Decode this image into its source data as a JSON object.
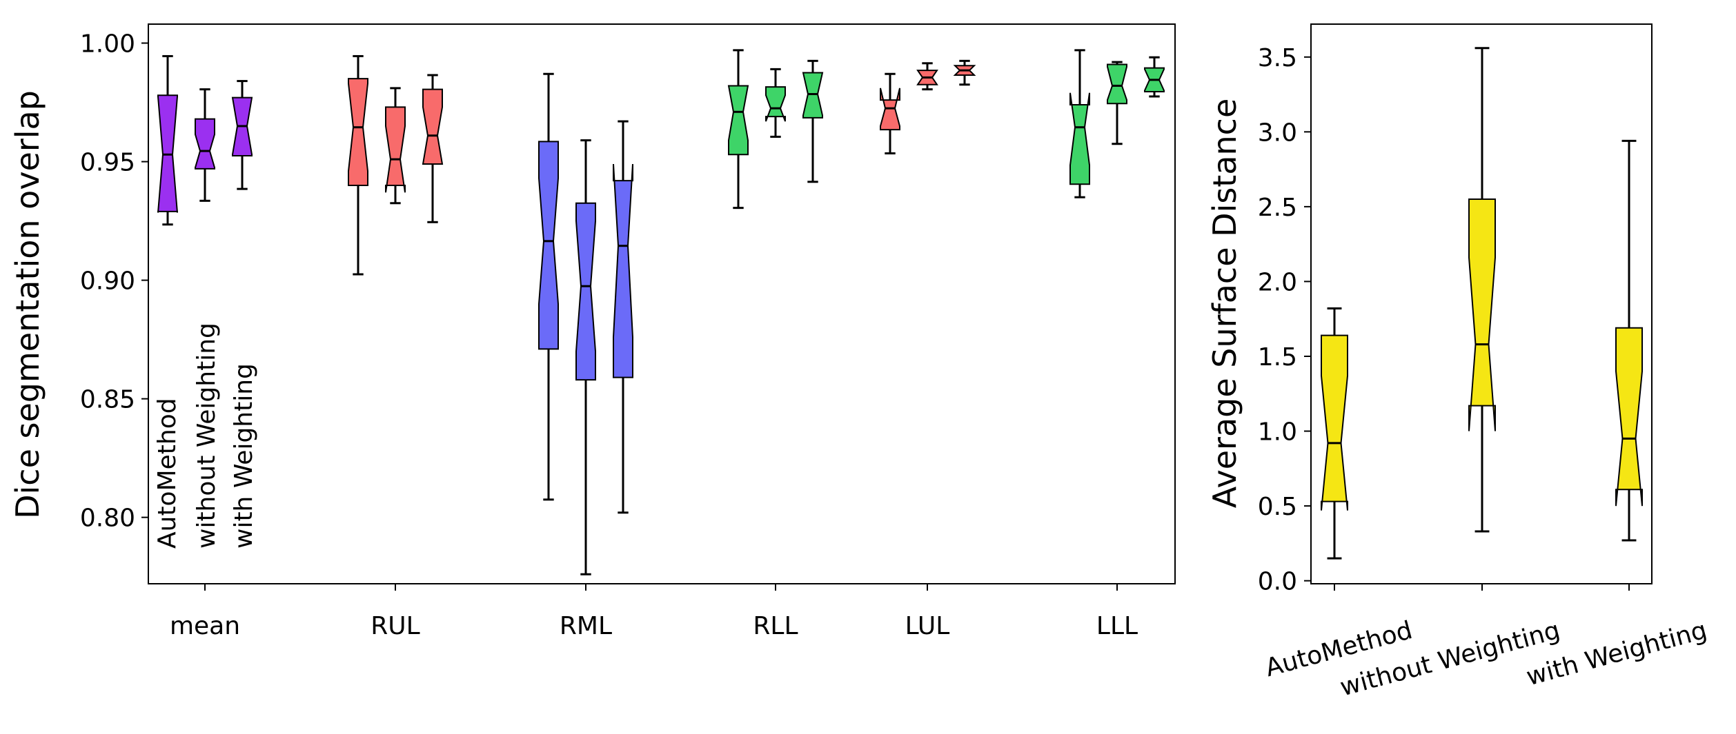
{
  "chart_data": [
    {
      "type": "boxplot",
      "ylabel": "Dice segmentation overlap",
      "ylim": [
        0.772,
        1.008
      ],
      "yticks": [
        0.8,
        0.85,
        0.9,
        0.95,
        1.0
      ],
      "ytick_labels": [
        "0.80",
        "0.85",
        "0.90",
        "0.95",
        "1.00"
      ],
      "categories": [
        "mean",
        "RUL",
        "RML",
        "RLL",
        "LUL",
        "LLL"
      ],
      "methods": [
        "AutoMethod",
        "without Weighting",
        "with Weighting"
      ],
      "notched": true,
      "colors": {
        "mean": "#9b30f0",
        "RUL": "#f86b6b",
        "RML": "#6b6bf8",
        "RLL": "#3ed468",
        "LUL": "#f86b6b",
        "LLL": "#3ed468"
      },
      "boxes": [
        {
          "category": "mean",
          "method": "AutoMethod",
          "whislo": 0.9235,
          "q1": 0.929,
          "med": 0.953,
          "q3": 0.978,
          "whishi": 0.9945,
          "notch_lo": 0.9285,
          "notch_hi": 0.9775
        },
        {
          "category": "mean",
          "method": "without Weighting",
          "whislo": 0.9335,
          "q1": 0.947,
          "med": 0.9545,
          "q3": 0.968,
          "whishi": 0.9805,
          "notch_lo": 0.9475,
          "notch_hi": 0.9615
        },
        {
          "category": "mean",
          "method": "with Weighting",
          "whislo": 0.9385,
          "q1": 0.9525,
          "med": 0.965,
          "q3": 0.977,
          "whishi": 0.984,
          "notch_lo": 0.953,
          "notch_hi": 0.977
        },
        {
          "category": "RUL",
          "method": "AutoMethod",
          "whislo": 0.9025,
          "q1": 0.94,
          "med": 0.9645,
          "q3": 0.985,
          "whishi": 0.9945,
          "notch_lo": 0.946,
          "notch_hi": 0.983
        },
        {
          "category": "RUL",
          "method": "without Weighting",
          "whislo": 0.9325,
          "q1": 0.94,
          "med": 0.951,
          "q3": 0.973,
          "whishi": 0.981,
          "notch_lo": 0.937,
          "notch_hi": 0.965
        },
        {
          "category": "RUL",
          "method": "with Weighting",
          "whislo": 0.9245,
          "q1": 0.949,
          "med": 0.961,
          "q3": 0.9805,
          "whishi": 0.9865,
          "notch_lo": 0.949,
          "notch_hi": 0.973
        },
        {
          "category": "RML",
          "method": "AutoMethod",
          "whislo": 0.8075,
          "q1": 0.871,
          "med": 0.9165,
          "q3": 0.9585,
          "whishi": 0.987,
          "notch_lo": 0.89,
          "notch_hi": 0.943
        },
        {
          "category": "RML",
          "method": "without Weighting",
          "whislo": 0.776,
          "q1": 0.858,
          "med": 0.8975,
          "q3": 0.9325,
          "whishi": 0.959,
          "notch_lo": 0.87,
          "notch_hi": 0.925
        },
        {
          "category": "RML",
          "method": "with Weighting",
          "whislo": 0.802,
          "q1": 0.859,
          "med": 0.9145,
          "q3": 0.942,
          "whishi": 0.967,
          "notch_lo": 0.876,
          "notch_hi": 0.949
        },
        {
          "category": "RLL",
          "method": "AutoMethod",
          "whislo": 0.9305,
          "q1": 0.953,
          "med": 0.971,
          "q3": 0.982,
          "whishi": 0.997,
          "notch_lo": 0.959,
          "notch_hi": 0.982
        },
        {
          "category": "RLL",
          "method": "without Weighting",
          "whislo": 0.9605,
          "q1": 0.969,
          "med": 0.9725,
          "q3": 0.9815,
          "whishi": 0.989,
          "notch_lo": 0.967,
          "notch_hi": 0.978
        },
        {
          "category": "RLL",
          "method": "with Weighting",
          "whislo": 0.9415,
          "q1": 0.9685,
          "med": 0.9785,
          "q3": 0.9875,
          "whishi": 0.9925,
          "notch_lo": 0.9695,
          "notch_hi": 0.9875
        },
        {
          "category": "LUL",
          "method": "AutoMethod",
          "whislo": 0.9535,
          "q1": 0.9635,
          "med": 0.9725,
          "q3": 0.976,
          "whishi": 0.987,
          "notch_lo": 0.965,
          "notch_hi": 0.981
        },
        {
          "category": "LUL",
          "method": "without Weighting",
          "whislo": 0.9805,
          "q1": 0.9825,
          "med": 0.9855,
          "q3": 0.9885,
          "whishi": 0.9915,
          "notch_lo": 0.9825,
          "notch_hi": 0.9885
        },
        {
          "category": "LUL",
          "method": "with Weighting",
          "whislo": 0.9825,
          "q1": 0.9865,
          "med": 0.9885,
          "q3": 0.9905,
          "whishi": 0.9925,
          "notch_lo": 0.9865,
          "notch_hi": 0.9905
        },
        {
          "category": "LLL",
          "method": "AutoMethod",
          "whislo": 0.935,
          "q1": 0.9405,
          "med": 0.9645,
          "q3": 0.974,
          "whishi": 0.997,
          "notch_lo": 0.9485,
          "notch_hi": 0.979
        },
        {
          "category": "LLL",
          "method": "without Weighting",
          "whislo": 0.9575,
          "q1": 0.9745,
          "med": 0.982,
          "q3": 0.991,
          "whishi": 0.992,
          "notch_lo": 0.976,
          "notch_hi": 0.99
        },
        {
          "category": "LLL",
          "method": "with Weighting",
          "whislo": 0.9775,
          "q1": 0.9795,
          "med": 0.9845,
          "q3": 0.9895,
          "whishi": 0.994,
          "notch_lo": 0.98,
          "notch_hi": 0.989
        }
      ]
    },
    {
      "type": "boxplot",
      "ylabel": "Average Surface Distance",
      "ylim": [
        -0.02,
        3.72
      ],
      "yticks": [
        0.0,
        0.5,
        1.0,
        1.5,
        2.0,
        2.5,
        3.0,
        3.5
      ],
      "ytick_labels": [
        "0.0",
        "0.5",
        "1.0",
        "1.5",
        "2.0",
        "2.5",
        "3.0",
        "3.5"
      ],
      "categories": [
        "AutoMethod",
        "without Weighting",
        "with Weighting"
      ],
      "notched": true,
      "color": "#f5e614",
      "boxes": [
        {
          "category": "AutoMethod",
          "whislo": 0.15,
          "q1": 0.53,
          "med": 0.92,
          "q3": 1.64,
          "whishi": 1.82,
          "notch_lo": 0.47,
          "notch_hi": 1.37
        },
        {
          "category": "without Weighting",
          "whislo": 0.33,
          "q1": 1.17,
          "med": 1.58,
          "q3": 2.55,
          "whishi": 3.56,
          "notch_lo": 1.0,
          "notch_hi": 2.16
        },
        {
          "category": "with Weighting",
          "whislo": 0.27,
          "q1": 0.61,
          "med": 0.95,
          "q3": 1.69,
          "whishi": 2.94,
          "notch_lo": 0.5,
          "notch_hi": 1.4
        }
      ]
    }
  ]
}
